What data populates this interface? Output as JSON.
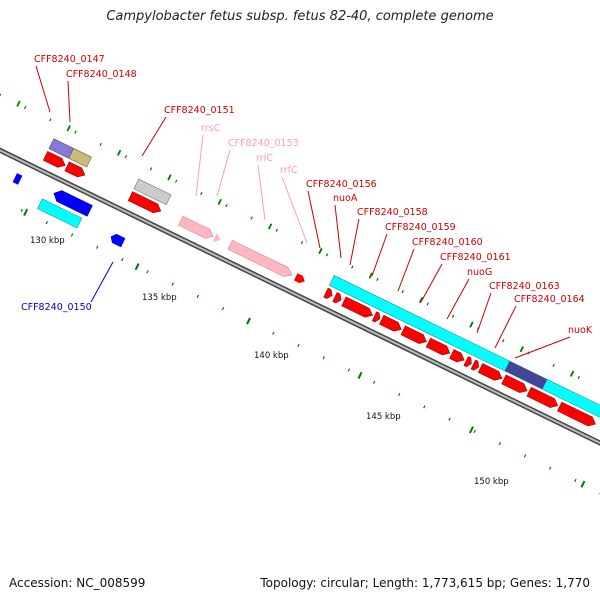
{
  "title": "Campylobacter fetus subsp. fetus 82-40, complete genome",
  "footer": {
    "accession": "Accession: NC_008599",
    "topology": "Topology: circular; Length: 1,773,615 bp; Genes: 1,770"
  },
  "colors": {
    "cds": "#ff0000",
    "rna": "#ffb6c1",
    "other": "#00ffff",
    "blue": "#0000ff",
    "label_red": "#cc0000",
    "label_pink": "#ff99bb",
    "label_blue": "#0000cc"
  },
  "scale_labels": [
    "130 kbp",
    "135 kbp",
    "140 kbp",
    "145 kbp",
    "150 kbp"
  ],
  "gene_labels": [
    {
      "text": "CFF8240_0147",
      "color": "red"
    },
    {
      "text": "CFF8240_0148",
      "color": "red"
    },
    {
      "text": "CFF8240_0151",
      "color": "red"
    },
    {
      "text": "rrsC",
      "color": "pink"
    },
    {
      "text": "CFF8240_0153",
      "color": "pink"
    },
    {
      "text": "rrlC",
      "color": "pink"
    },
    {
      "text": "rrfC",
      "color": "pink"
    },
    {
      "text": "CFF8240_0156",
      "color": "red"
    },
    {
      "text": "nuoA",
      "color": "red"
    },
    {
      "text": "CFF8240_0158",
      "color": "red"
    },
    {
      "text": "CFF8240_0159",
      "color": "red"
    },
    {
      "text": "CFF8240_0160",
      "color": "red"
    },
    {
      "text": "CFF8240_0161",
      "color": "red"
    },
    {
      "text": "nuoG",
      "color": "red"
    },
    {
      "text": "CFF8240_0163",
      "color": "red"
    },
    {
      "text": "CFF8240_0164",
      "color": "red"
    },
    {
      "text": "nuoK",
      "color": "red"
    },
    {
      "text": "CFF8240_0150",
      "color": "blue"
    }
  ]
}
